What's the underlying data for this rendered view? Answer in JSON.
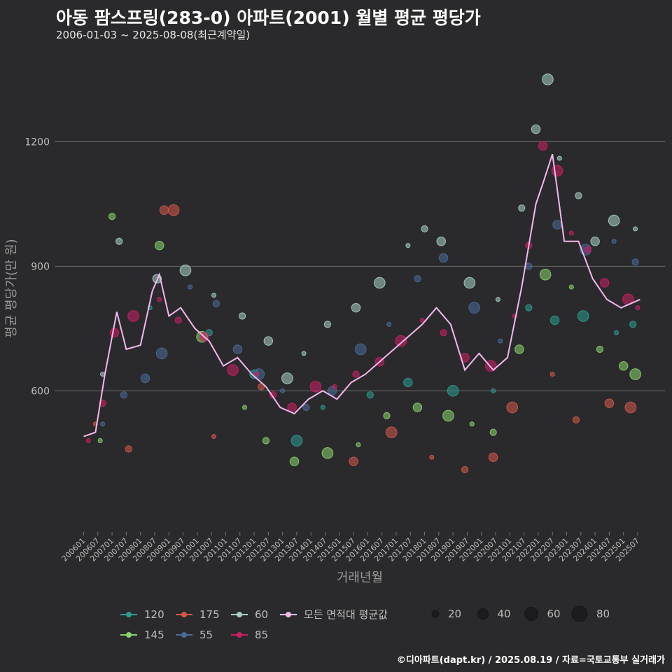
{
  "chart_data": {
    "type": "scatter",
    "title": "아동 팜스프링(283-0) 아파트(2001) 월별 평균 평당가",
    "subtitle": "2006-01-03 ~ 2025-08-08(최근계약일)",
    "xlabel": "거래년월",
    "ylabel": "평균 평당가(만 원)",
    "credit": "©디아파트(dapt.kr) / 2025.08.19 / 자료=국토교통부 실거래가",
    "ylim": [
      260,
      1440
    ],
    "y_ticks": [
      600,
      900,
      1200
    ],
    "x_ticks": [
      "200601",
      "200607",
      "200701",
      "200707",
      "200801",
      "200807",
      "200901",
      "200907",
      "201001",
      "201007",
      "201101",
      "201107",
      "201201",
      "201207",
      "201301",
      "201307",
      "201401",
      "201407",
      "201501",
      "201507",
      "201601",
      "201607",
      "201701",
      "201707",
      "201801",
      "201807",
      "201901",
      "201907",
      "202001",
      "202007",
      "202101",
      "202107",
      "202201",
      "202207",
      "202301",
      "202307",
      "202401",
      "202407",
      "202501",
      "202507"
    ],
    "grid": true,
    "legend_position": "bottom",
    "series": [
      {
        "name": "120",
        "color": "#2a9d8f",
        "points": [
          [
            "2008-05",
            800
          ],
          [
            "2010-06",
            740
          ],
          [
            "2012-01",
            640
          ],
          [
            "2013-07",
            480
          ],
          [
            "2014-06",
            560
          ],
          [
            "2016-02",
            590
          ],
          [
            "2017-06",
            620
          ],
          [
            "2019-01",
            600
          ],
          [
            "2020-06",
            600
          ],
          [
            "2021-09",
            800
          ],
          [
            "2022-08",
            770
          ],
          [
            "2023-08",
            780
          ],
          [
            "2024-10",
            740
          ],
          [
            "2025-05",
            760
          ]
        ]
      },
      {
        "name": "145",
        "color": "#8bd36f",
        "points": [
          [
            "2006-08",
            480
          ],
          [
            "2007-01",
            1020
          ],
          [
            "2008-09",
            950
          ],
          [
            "2010-03",
            730
          ],
          [
            "2011-09",
            560
          ],
          [
            "2012-06",
            480
          ],
          [
            "2013-06",
            430
          ],
          [
            "2014-08",
            450
          ],
          [
            "2015-09",
            470
          ],
          [
            "2016-09",
            540
          ],
          [
            "2017-10",
            560
          ],
          [
            "2018-11",
            540
          ],
          [
            "2019-09",
            520
          ],
          [
            "2020-06",
            500
          ],
          [
            "2021-05",
            700
          ],
          [
            "2022-04",
            880
          ],
          [
            "2023-03",
            850
          ],
          [
            "2024-03",
            700
          ],
          [
            "2025-01",
            660
          ],
          [
            "2025-06",
            640
          ]
        ]
      },
      {
        "name": "175",
        "color": "#d4584a",
        "points": [
          [
            "2006-06",
            520
          ],
          [
            "2007-08",
            460
          ],
          [
            "2008-11",
            1035
          ],
          [
            "2009-03",
            1035
          ],
          [
            "2010-08",
            490
          ],
          [
            "2012-04",
            610
          ],
          [
            "2015-07",
            430
          ],
          [
            "2016-11",
            500
          ],
          [
            "2018-04",
            440
          ],
          [
            "2019-06",
            410
          ],
          [
            "2020-06",
            440
          ],
          [
            "2021-02",
            560
          ],
          [
            "2022-07",
            640
          ],
          [
            "2023-05",
            530
          ],
          [
            "2024-07",
            570
          ],
          [
            "2025-04",
            560
          ]
        ]
      },
      {
        "name": "55",
        "color": "#4a6a9a",
        "points": [
          [
            "2006-09",
            520
          ],
          [
            "2007-06",
            590
          ],
          [
            "2008-03",
            630
          ],
          [
            "2008-10",
            690
          ],
          [
            "2009-10",
            850
          ],
          [
            "2010-09",
            810
          ],
          [
            "2011-06",
            700
          ],
          [
            "2012-03",
            640
          ],
          [
            "2013-01",
            600
          ],
          [
            "2013-11",
            560
          ],
          [
            "2014-10",
            600
          ],
          [
            "2015-10",
            700
          ],
          [
            "2016-10",
            760
          ],
          [
            "2017-10",
            870
          ],
          [
            "2018-09",
            920
          ],
          [
            "2019-10",
            800
          ],
          [
            "2020-09",
            720
          ],
          [
            "2021-09",
            900
          ],
          [
            "2022-09",
            1000
          ],
          [
            "2023-09",
            940
          ],
          [
            "2024-09",
            960
          ],
          [
            "2025-06",
            910
          ]
        ]
      },
      {
        "name": "60",
        "color": "#a8cfc9",
        "points": [
          [
            "2006-09",
            640
          ],
          [
            "2007-04",
            960
          ],
          [
            "2008-08",
            870
          ],
          [
            "2009-08",
            890
          ],
          [
            "2010-08",
            830
          ],
          [
            "2011-08",
            780
          ],
          [
            "2012-07",
            720
          ],
          [
            "2013-03",
            630
          ],
          [
            "2013-10",
            690
          ],
          [
            "2014-08",
            760
          ],
          [
            "2015-08",
            800
          ],
          [
            "2016-06",
            860
          ],
          [
            "2017-06",
            950
          ],
          [
            "2018-01",
            990
          ],
          [
            "2018-08",
            960
          ],
          [
            "2019-08",
            860
          ],
          [
            "2020-08",
            820
          ],
          [
            "2021-06",
            1040
          ],
          [
            "2021-12",
            1230
          ],
          [
            "2022-05",
            1350
          ],
          [
            "2022-10",
            1160
          ],
          [
            "2023-06",
            1070
          ],
          [
            "2024-01",
            960
          ],
          [
            "2024-09",
            1010
          ],
          [
            "2025-06",
            990
          ]
        ]
      },
      {
        "name": "85",
        "color": "#cc1f66",
        "points": [
          [
            "2006-03",
            480
          ],
          [
            "2006-09",
            570
          ],
          [
            "2007-02",
            740
          ],
          [
            "2007-10",
            780
          ],
          [
            "2008-09",
            820
          ],
          [
            "2009-05",
            770
          ],
          [
            "2010-04",
            730
          ],
          [
            "2011-04",
            650
          ],
          [
            "2012-02",
            640
          ],
          [
            "2012-09",
            590
          ],
          [
            "2013-05",
            560
          ],
          [
            "2014-03",
            610
          ],
          [
            "2014-11",
            610
          ],
          [
            "2015-08",
            640
          ],
          [
            "2016-06",
            670
          ],
          [
            "2017-03",
            720
          ],
          [
            "2017-12",
            770
          ],
          [
            "2018-09",
            740
          ],
          [
            "2019-06",
            680
          ],
          [
            "2020-05",
            660
          ],
          [
            "2021-03",
            780
          ],
          [
            "2021-09",
            950
          ],
          [
            "2022-03",
            1190
          ],
          [
            "2022-09",
            1130
          ],
          [
            "2023-03",
            980
          ],
          [
            "2023-10",
            940
          ],
          [
            "2024-05",
            860
          ],
          [
            "2025-03",
            820
          ],
          [
            "2025-07",
            800
          ]
        ]
      }
    ],
    "average_series": {
      "name": "모든 면적대 평균값",
      "color": "#f3b8ec",
      "points": [
        [
          "2006-01",
          490
        ],
        [
          "2006-06",
          500
        ],
        [
          "2006-10",
          640
        ],
        [
          "2007-03",
          790
        ],
        [
          "2007-07",
          700
        ],
        [
          "2008-01",
          710
        ],
        [
          "2008-06",
          840
        ],
        [
          "2008-09",
          880
        ],
        [
          "2009-01",
          780
        ],
        [
          "2009-06",
          800
        ],
        [
          "2009-12",
          750
        ],
        [
          "2010-06",
          720
        ],
        [
          "2010-12",
          660
        ],
        [
          "2011-06",
          680
        ],
        [
          "2011-12",
          640
        ],
        [
          "2012-06",
          610
        ],
        [
          "2012-12",
          560
        ],
        [
          "2013-06",
          545
        ],
        [
          "2013-12",
          580
        ],
        [
          "2014-06",
          600
        ],
        [
          "2014-12",
          580
        ],
        [
          "2015-06",
          620
        ],
        [
          "2015-12",
          640
        ],
        [
          "2016-06",
          670
        ],
        [
          "2016-12",
          700
        ],
        [
          "2017-06",
          730
        ],
        [
          "2017-12",
          760
        ],
        [
          "2018-06",
          800
        ],
        [
          "2018-12",
          760
        ],
        [
          "2019-06",
          650
        ],
        [
          "2019-12",
          690
        ],
        [
          "2020-06",
          650
        ],
        [
          "2020-12",
          680
        ],
        [
          "2021-06",
          850
        ],
        [
          "2021-12",
          1050
        ],
        [
          "2022-03",
          1100
        ],
        [
          "2022-07",
          1170
        ],
        [
          "2022-12",
          960
        ],
        [
          "2023-06",
          960
        ],
        [
          "2023-12",
          870
        ],
        [
          "2024-06",
          820
        ],
        [
          "2024-12",
          800
        ],
        [
          "2025-04",
          810
        ],
        [
          "2025-08",
          820
        ]
      ]
    },
    "size_legend": [
      20,
      40,
      60,
      80
    ]
  }
}
